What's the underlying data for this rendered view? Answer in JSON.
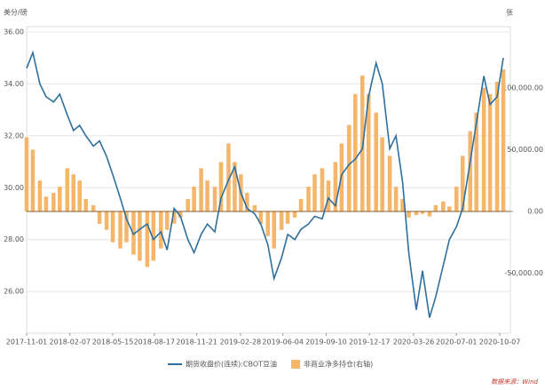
{
  "chart_data": {
    "type": "line_bar",
    "y_label": "美分/磅",
    "y2_label": "张",
    "source": "数据来源：Wind",
    "x": [
      "2017-11-01",
      "2017-11-15",
      "2017-12-01",
      "2017-12-15",
      "2018-01-01",
      "2018-01-15",
      "2018-02-01",
      "2018-02-15",
      "2018-03-01",
      "2018-03-15",
      "2018-04-01",
      "2018-04-15",
      "2018-05-01",
      "2018-05-15",
      "2018-06-01",
      "2018-06-15",
      "2018-07-01",
      "2018-07-15",
      "2018-08-01",
      "2018-08-15",
      "2018-09-01",
      "2018-09-15",
      "2018-10-01",
      "2018-10-15",
      "2018-11-01",
      "2018-11-15",
      "2018-12-01",
      "2018-12-15",
      "2019-01-01",
      "2019-01-15",
      "2019-02-01",
      "2019-02-15",
      "2019-03-01",
      "2019-03-15",
      "2019-04-01",
      "2019-04-15",
      "2019-05-01",
      "2019-05-15",
      "2019-06-01",
      "2019-06-15",
      "2019-07-01",
      "2019-07-15",
      "2019-08-01",
      "2019-08-15",
      "2019-09-01",
      "2019-09-15",
      "2019-10-01",
      "2019-10-15",
      "2019-11-01",
      "2019-11-15",
      "2019-12-01",
      "2019-12-15",
      "2020-01-01",
      "2020-01-15",
      "2020-02-01",
      "2020-02-15",
      "2020-03-01",
      "2020-03-15",
      "2020-04-01",
      "2020-04-15",
      "2020-05-01",
      "2020-05-15",
      "2020-06-01",
      "2020-06-15",
      "2020-07-01",
      "2020-07-15",
      "2020-08-01",
      "2020-08-15",
      "2020-09-01",
      "2020-09-15",
      "2020-10-01",
      "2020-10-15"
    ],
    "xlim": [
      "2017-11-01",
      "2020-10-31"
    ],
    "xticks": [
      "2017-11-01",
      "2018-02-07",
      "2018-05-15",
      "2018-08-17",
      "2018-11-21",
      "2019-02-28",
      "2019-06-04",
      "2019-09-10",
      "2019-12-17",
      "2020-03-26",
      "2020-07-01",
      "2020-10-07"
    ],
    "series": [
      {
        "name": "期货收盘价(连续):CBOT豆油",
        "color": "#2e6f9e",
        "values": [
          34.6,
          35.2,
          34.0,
          33.5,
          33.3,
          33.6,
          32.8,
          32.2,
          32.4,
          32.0,
          31.6,
          31.8,
          31.2,
          30.5,
          29.6,
          28.8,
          28.2,
          28.4,
          28.6,
          28.0,
          28.3,
          27.6,
          29.2,
          28.9,
          28.0,
          27.5,
          28.2,
          28.6,
          28.3,
          29.6,
          30.3,
          30.8,
          29.8,
          29.2,
          29.0,
          28.6,
          27.8,
          26.5,
          27.3,
          28.2,
          28.0,
          28.4,
          28.6,
          28.9,
          28.8,
          29.6,
          29.3,
          30.5,
          30.9,
          31.1,
          31.5,
          33.5,
          34.8,
          34.0,
          31.5,
          32.0,
          30.2,
          27.5,
          25.3,
          26.8,
          25.0,
          25.8,
          27.0,
          28.0,
          28.5,
          29.2,
          31.0,
          32.5,
          34.3,
          33.2,
          33.5,
          35.0
        ]
      },
      {
        "name": "非商业净多持仓(右轴)",
        "color": "#f5b66c",
        "axis": "y2",
        "values": [
          60000,
          50000,
          25000,
          12000,
          15000,
          20000,
          35000,
          30000,
          25000,
          10000,
          5000,
          -10000,
          -15000,
          -25000,
          -30000,
          -25000,
          -35000,
          -40000,
          -45000,
          -40000,
          -30000,
          -15000,
          -10000,
          -5000,
          10000,
          20000,
          35000,
          25000,
          20000,
          40000,
          55000,
          40000,
          30000,
          15000,
          5000,
          -10000,
          -20000,
          -30000,
          -15000,
          -10000,
          -5000,
          10000,
          20000,
          30000,
          35000,
          25000,
          40000,
          55000,
          70000,
          95000,
          110000,
          95000,
          80000,
          60000,
          45000,
          20000,
          10000,
          -5000,
          -3000,
          -2000,
          -4000,
          5000,
          8000,
          4000,
          20000,
          45000,
          65000,
          80000,
          100000,
          95000,
          105000,
          115000
        ]
      }
    ],
    "ylim": [
      24.4,
      36.2
    ],
    "yticks": [
      {
        "value": 26,
        "label": "26.00"
      },
      {
        "value": 28,
        "label": "28.00"
      },
      {
        "value": 30,
        "label": "30.00"
      },
      {
        "value": 32,
        "label": "32.00"
      },
      {
        "value": 34,
        "label": "34.00"
      },
      {
        "value": 36,
        "label": "36.00"
      }
    ],
    "y2lim": [
      -98600,
      149600
    ],
    "y2ticks": [
      {
        "value": -50000,
        "label": "-50,000.00"
      },
      {
        "value": 0,
        "label": "0.00"
      },
      {
        "value": 50000,
        "label": "50,000.00"
      },
      {
        "value": 100000,
        "label": "100,000.00"
      }
    ],
    "grid": true
  }
}
